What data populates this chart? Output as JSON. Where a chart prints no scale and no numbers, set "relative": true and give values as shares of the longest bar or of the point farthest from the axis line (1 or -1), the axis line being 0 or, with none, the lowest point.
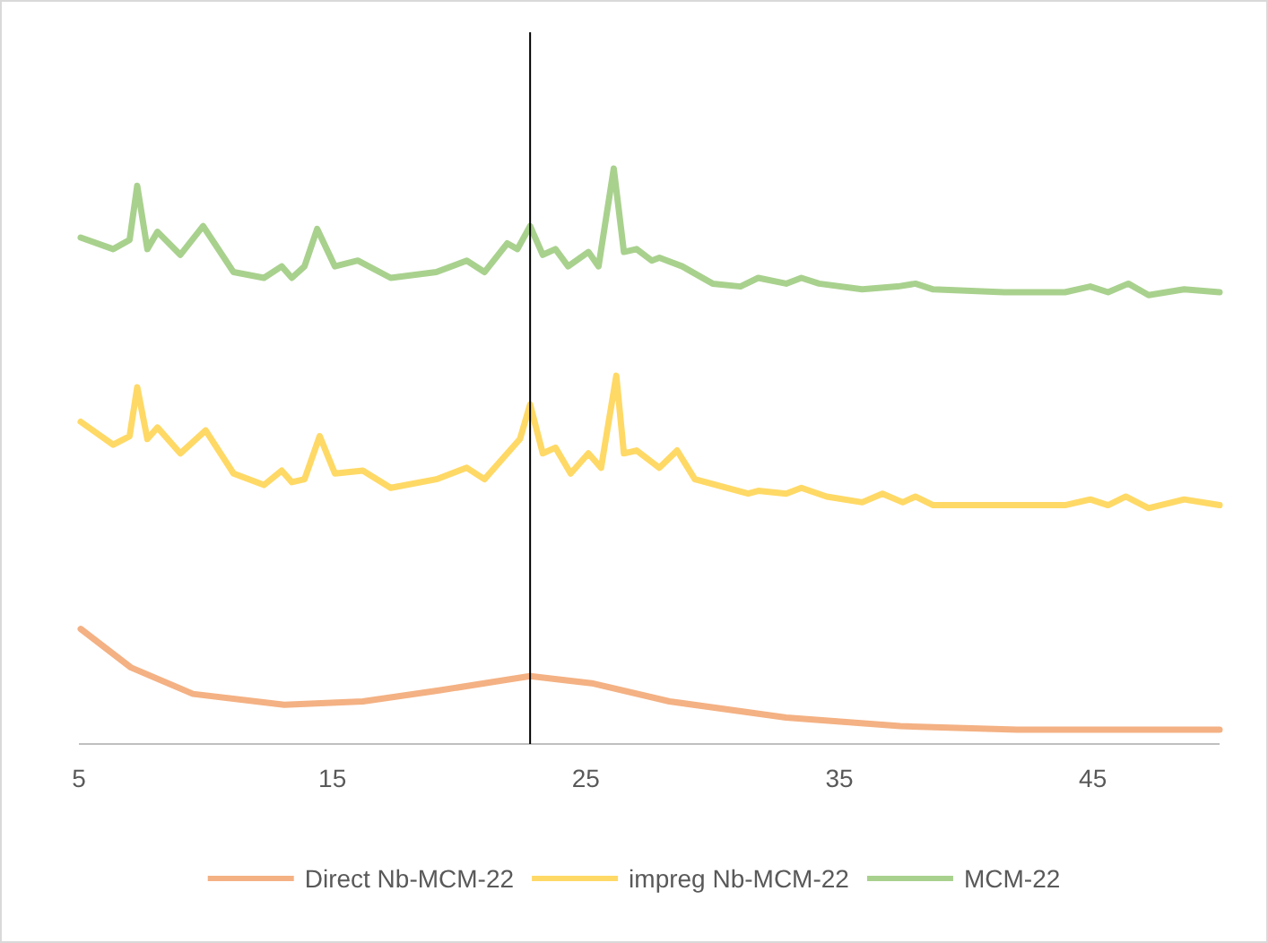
{
  "chart_data": {
    "type": "line",
    "relative": true,
    "xlim": [
      5,
      50
    ],
    "xticks": [
      5,
      15,
      25,
      35,
      45
    ],
    "grid": false,
    "legend": "bottom",
    "marker": "none",
    "line_style": "solid",
    "ref_lines": [
      {
        "axis": "x",
        "value": 22.8,
        "color": "#000000"
      }
    ],
    "series": [
      {
        "name": "Direct Nb-MCM-22",
        "color": "#f4b183",
        "x": [
          5.07,
          7.05,
          9.5,
          13.1,
          16.2,
          19.2,
          22.8,
          25.3,
          28.3,
          32.9,
          37.4,
          42.0,
          46.6,
          50
        ],
        "values": [
          0.2,
          0.133,
          0.087,
          0.068,
          0.074,
          0.093,
          0.118,
          0.105,
          0.074,
          0.046,
          0.031,
          0.025,
          0.025,
          0.025
        ]
      },
      {
        "name": "impreg Nb-MCM-22",
        "color": "#ffd966",
        "x": [
          5.07,
          6.35,
          7.0,
          7.3,
          7.7,
          8.1,
          9.0,
          10.0,
          11.1,
          12.3,
          13.0,
          13.4,
          13.9,
          14.5,
          15.1,
          16.2,
          17.3,
          19.1,
          20.3,
          21.0,
          21.9,
          22.4,
          22.8,
          23.3,
          23.8,
          24.4,
          25.1,
          25.6,
          26.2,
          26.5,
          27.0,
          27.6,
          27.9,
          28.6,
          29.3,
          31.4,
          31.8,
          32.9,
          33.5,
          34.5,
          35.9,
          36.7,
          37.5,
          38.0,
          38.7,
          41.5,
          43.9,
          44.9,
          45.6,
          46.3,
          47.2,
          48.6,
          50
        ],
        "values": [
          0.56,
          0.52,
          0.535,
          0.62,
          0.53,
          0.55,
          0.505,
          0.545,
          0.47,
          0.45,
          0.475,
          0.455,
          0.46,
          0.535,
          0.47,
          0.475,
          0.445,
          0.46,
          0.48,
          0.46,
          0.505,
          0.53,
          0.59,
          0.505,
          0.515,
          0.47,
          0.505,
          0.48,
          0.64,
          0.505,
          0.51,
          0.49,
          0.48,
          0.51,
          0.46,
          0.435,
          0.44,
          0.435,
          0.445,
          0.43,
          0.42,
          0.435,
          0.42,
          0.43,
          0.415,
          0.415,
          0.415,
          0.425,
          0.415,
          0.43,
          0.41,
          0.425,
          0.415
        ]
      },
      {
        "name": "MCM-22",
        "color": "#a9d18e",
        "x": [
          5.07,
          6.35,
          7.0,
          7.3,
          7.7,
          8.1,
          9.0,
          9.9,
          11.1,
          12.3,
          13.0,
          13.4,
          13.9,
          14.4,
          15.1,
          16.0,
          17.3,
          19.1,
          20.3,
          21.0,
          21.9,
          22.3,
          22.8,
          23.3,
          23.8,
          24.3,
          25.1,
          25.5,
          26.1,
          26.5,
          27.0,
          27.6,
          27.9,
          28.8,
          30.0,
          31.1,
          31.8,
          32.9,
          33.5,
          34.2,
          35.9,
          37.3,
          38.0,
          38.7,
          41.5,
          43.9,
          44.9,
          45.6,
          46.4,
          47.2,
          48.6,
          50
        ],
        "values": [
          0.88,
          0.86,
          0.876,
          0.97,
          0.86,
          0.89,
          0.85,
          0.9,
          0.82,
          0.81,
          0.83,
          0.81,
          0.83,
          0.895,
          0.83,
          0.84,
          0.81,
          0.82,
          0.84,
          0.82,
          0.87,
          0.86,
          0.9,
          0.85,
          0.86,
          0.83,
          0.855,
          0.83,
          1,
          0.855,
          0.86,
          0.84,
          0.845,
          0.83,
          0.8,
          0.795,
          0.81,
          0.8,
          0.81,
          0.8,
          0.79,
          0.795,
          0.8,
          0.79,
          0.785,
          0.785,
          0.795,
          0.785,
          0.8,
          0.78,
          0.79,
          0.785
        ]
      }
    ]
  }
}
